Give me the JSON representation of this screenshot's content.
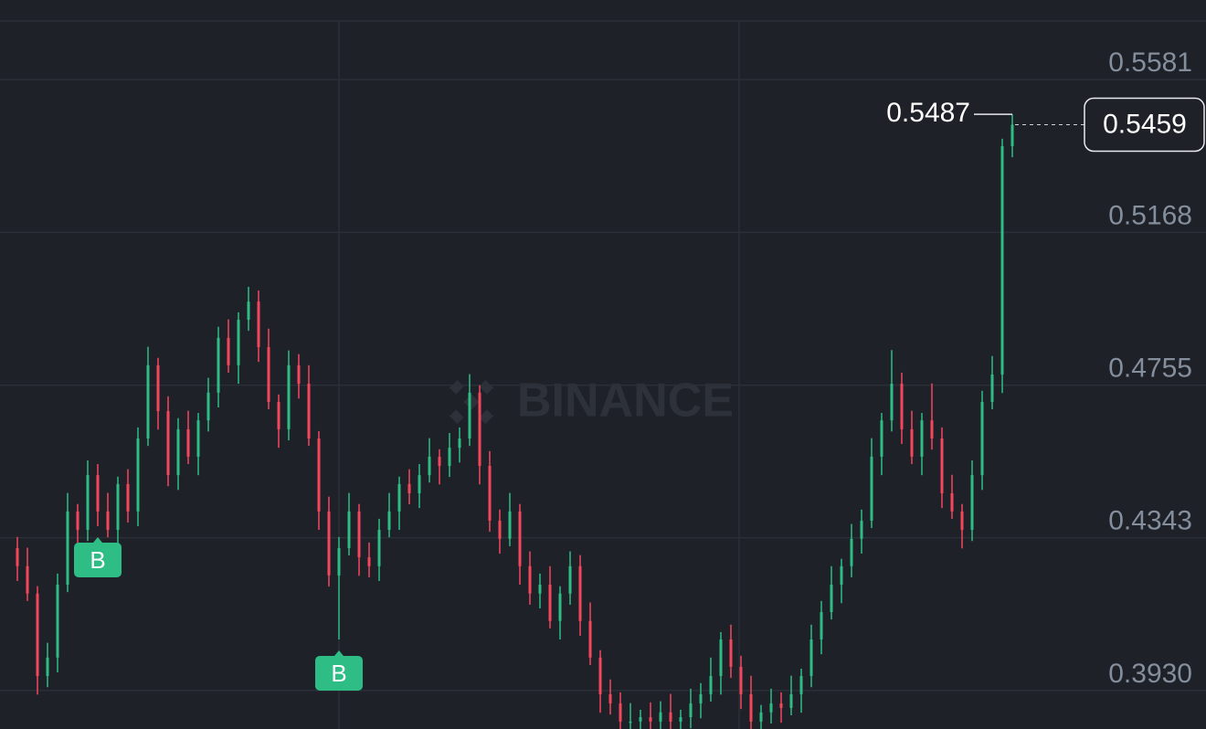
{
  "chart_data": {
    "type": "candlestick",
    "up_color": "#2ebd85",
    "down_color": "#f6465d",
    "ylim": [
      0.3826,
      0.5796
    ],
    "yticks": [
      0.5581,
      0.5168,
      0.4755,
      0.4343,
      {
        "value": 0.393,
        "label": "0.3930"
      }
    ],
    "grid": true,
    "watermark": "BINANCE",
    "markers": [
      "B",
      "B"
    ],
    "open": [
      0.4315,
      0.4266,
      0.4192,
      0.3969,
      0.4019,
      0.4216,
      0.4414,
      0.4364,
      0.4512,
      0.4414,
      0.4364,
      0.4488,
      0.4414,
      0.4611,
      0.4809,
      0.4685,
      0.4512,
      0.4636,
      0.4562,
      0.466,
      0.4735,
      0.4883,
      0.4809,
      0.4932,
      0.4981,
      0.4858,
      0.471,
      0.4636,
      0.4809,
      0.4759,
      0.4611,
      0.4414,
      0.4241,
      0.4315,
      0.4414,
      0.429,
      0.4266,
      0.4364,
      0.4414,
      0.4488,
      0.4463,
      0.4512,
      0.4562,
      0.4537,
      0.4586,
      0.4611,
      0.4735,
      0.4537,
      0.4389,
      0.434,
      0.4414,
      0.4266,
      0.4192,
      0.4216,
      0.4118,
      0.4192,
      0.4266,
      0.4118,
      0.4019,
      0.392,
      0.3895,
      0.3846,
      0.3846,
      0.3858,
      0.3846,
      0.3871,
      0.3846,
      0.3858,
      0.3895,
      0.392,
      0.3969,
      0.4068,
      0.3994,
      0.392,
      0.3846,
      0.3871,
      0.3895,
      0.3883,
      0.392,
      0.3969,
      0.4068,
      0.4142,
      0.4216,
      0.4266,
      0.434,
      0.4389,
      0.4562,
      0.466,
      0.4759,
      0.4636,
      0.4562,
      0.466,
      0.4611,
      0.4463,
      0.4414,
      0.4364,
      0.4512,
      0.471,
      0.4784,
      0.5401
    ],
    "high": [
      0.4345,
      0.4316,
      0.4212,
      0.4059,
      0.4246,
      0.4464,
      0.4434,
      0.4552,
      0.4542,
      0.4464,
      0.4508,
      0.4528,
      0.4641,
      0.4859,
      0.4829,
      0.4725,
      0.4666,
      0.4686,
      0.468,
      0.4775,
      0.4913,
      0.4933,
      0.4952,
      0.5021,
      0.5011,
      0.4908,
      0.473,
      0.4849,
      0.4839,
      0.4809,
      0.4631,
      0.4454,
      0.4345,
      0.4464,
      0.4434,
      0.433,
      0.4394,
      0.4464,
      0.4508,
      0.4528,
      0.4542,
      0.4612,
      0.4582,
      0.4626,
      0.4641,
      0.4785,
      0.4755,
      0.4577,
      0.4419,
      0.4464,
      0.4434,
      0.4306,
      0.4246,
      0.4266,
      0.4212,
      0.4306,
      0.4296,
      0.4168,
      0.4039,
      0.396,
      0.3925,
      0.3896,
      0.3878,
      0.3898,
      0.3901,
      0.3921,
      0.3878,
      0.3935,
      0.395,
      0.4019,
      0.4088,
      0.4108,
      0.4024,
      0.397,
      0.3891,
      0.3935,
      0.3925,
      0.397,
      0.3989,
      0.4108,
      0.4172,
      0.4266,
      0.4286,
      0.438,
      0.4419,
      0.4612,
      0.468,
      0.485,
      0.4789,
      0.4686,
      0.468,
      0.476,
      0.4641,
      0.4513,
      0.4434,
      0.4552,
      0.474,
      0.4834,
      0.5421,
      0.5487
    ],
    "low": [
      0.4226,
      0.4172,
      0.3919,
      0.3939,
      0.3979,
      0.4196,
      0.4314,
      0.4334,
      0.4374,
      0.4344,
      0.4314,
      0.4384,
      0.4374,
      0.4591,
      0.4635,
      0.4482,
      0.4472,
      0.4542,
      0.4512,
      0.463,
      0.4695,
      0.4789,
      0.4759,
      0.4902,
      0.4818,
      0.469,
      0.4586,
      0.4606,
      0.4719,
      0.4591,
      0.4364,
      0.4211,
      0.4068,
      0.4295,
      0.424,
      0.4236,
      0.4226,
      0.4344,
      0.4364,
      0.4433,
      0.4423,
      0.4492,
      0.4487,
      0.4507,
      0.4546,
      0.4591,
      0.4487,
      0.4359,
      0.43,
      0.432,
      0.4216,
      0.4162,
      0.4152,
      0.4098,
      0.4068,
      0.4162,
      0.4078,
      0.3999,
      0.387,
      0.3865,
      0.3806,
      0.3826,
      0.3796,
      0.3816,
      0.3806,
      0.3826,
      0.3796,
      0.3828,
      0.3855,
      0.39,
      0.3919,
      0.3964,
      0.388,
      0.3826,
      0.3796,
      0.3841,
      0.3843,
      0.3863,
      0.387,
      0.3939,
      0.4028,
      0.4122,
      0.4166,
      0.4236,
      0.43,
      0.4369,
      0.4512,
      0.463,
      0.4596,
      0.4542,
      0.4512,
      0.4581,
      0.4423,
      0.4394,
      0.4314,
      0.4334,
      0.4472,
      0.469,
      0.4734,
      0.5371
    ],
    "close": [
      0.4266,
      0.4192,
      0.3969,
      0.4019,
      0.4216,
      0.4414,
      0.4364,
      0.4512,
      0.4414,
      0.4364,
      0.4488,
      0.4414,
      0.4611,
      0.4809,
      0.4685,
      0.4512,
      0.4636,
      0.4562,
      0.466,
      0.4735,
      0.4883,
      0.4809,
      0.4932,
      0.4981,
      0.4858,
      0.471,
      0.4636,
      0.4809,
      0.4759,
      0.4611,
      0.4414,
      0.4241,
      0.4315,
      0.4414,
      0.429,
      0.4266,
      0.4364,
      0.4414,
      0.4488,
      0.4463,
      0.4512,
      0.4562,
      0.4537,
      0.4586,
      0.4611,
      0.4735,
      0.4537,
      0.4389,
      0.434,
      0.4414,
      0.4266,
      0.4192,
      0.4216,
      0.4118,
      0.4192,
      0.4266,
      0.4118,
      0.4019,
      0.392,
      0.3895,
      0.3846,
      0.3846,
      0.3858,
      0.3846,
      0.3871,
      0.3846,
      0.3858,
      0.3895,
      0.392,
      0.3969,
      0.4068,
      0.3994,
      0.392,
      0.3846,
      0.3871,
      0.3895,
      0.3883,
      0.392,
      0.3969,
      0.4068,
      0.4142,
      0.4216,
      0.4266,
      0.434,
      0.4389,
      0.4562,
      0.466,
      0.4759,
      0.4636,
      0.4562,
      0.466,
      0.4611,
      0.4463,
      0.4414,
      0.4364,
      0.4512,
      0.471,
      0.4784,
      0.5401,
      0.5459
    ]
  }
}
